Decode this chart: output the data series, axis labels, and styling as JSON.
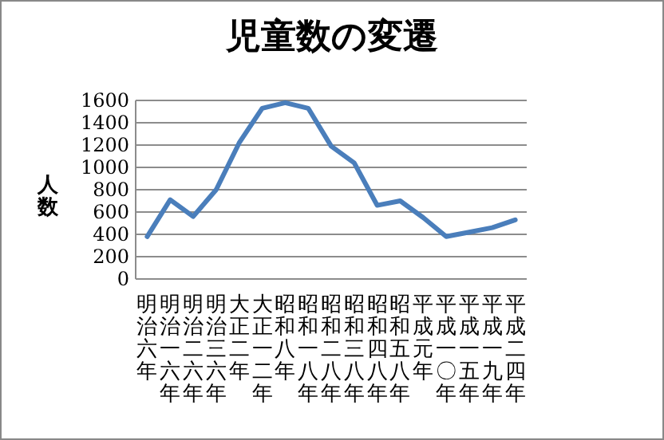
{
  "chart_data": {
    "type": "line",
    "title": "児童数の変遷",
    "ylabel": "人数",
    "categories": [
      "明治六年",
      "明治一六年",
      "明治二六年",
      "明治三六年",
      "大正二年",
      "大正一二年",
      "昭和八年",
      "昭和一八年",
      "昭和二八年",
      "昭和三八年",
      "昭和四八年",
      "昭和五八年",
      "平成元年",
      "平成一〇年",
      "平成一五年",
      "平成一九年",
      "平成二四年"
    ],
    "series": [
      {
        "color": "#4a7ebb",
        "values": [
          380,
          710,
          560,
          800,
          1220,
          1530,
          1580,
          1530,
          1190,
          1040,
          660,
          700,
          550,
          380,
          420,
          460,
          530
        ]
      }
    ],
    "ylim": [
      0,
      1600
    ],
    "yticks": [
      0,
      200,
      400,
      600,
      800,
      1000,
      1200,
      1400,
      1600
    ],
    "grid": "y",
    "marker": "none",
    "line_style": "solid"
  }
}
